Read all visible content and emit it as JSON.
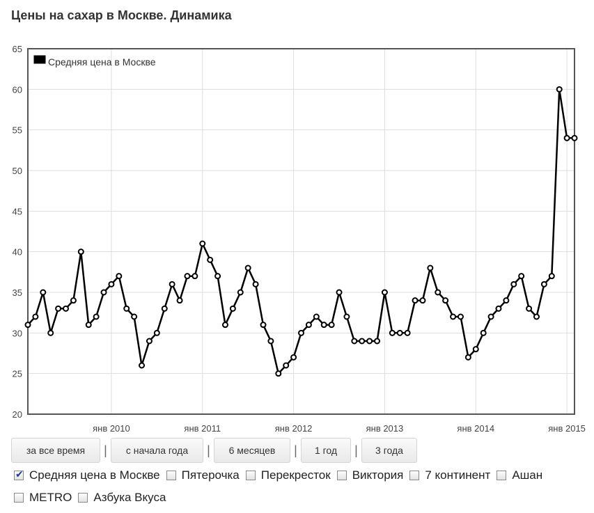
{
  "title": "Цены на сахар в Москве. Динамика",
  "chart_data": {
    "type": "line",
    "title": "Цены на сахар в Москве. Динамика",
    "xlabel": "",
    "ylabel": "",
    "ylim": [
      20,
      65
    ],
    "y_ticks": [
      20,
      25,
      30,
      35,
      40,
      45,
      50,
      55,
      60,
      65
    ],
    "x_tick_labels": [
      "янв 2010",
      "янв 2011",
      "янв 2012",
      "янв 2013",
      "янв 2014",
      "янв 2015"
    ],
    "x_start": "2009-02",
    "grid": true,
    "legend_position": "top-left",
    "colors": {
      "line": "#000000",
      "grid": "#dddddd",
      "frame": "#555555"
    },
    "series": [
      {
        "name": "Средняя цена в Москве",
        "values": [
          31,
          32,
          35,
          30,
          33,
          33,
          34,
          40,
          31,
          32,
          35,
          36,
          37,
          33,
          32,
          26,
          29,
          30,
          33,
          36,
          34,
          37,
          37,
          41,
          39,
          37,
          31,
          33,
          35,
          38,
          36,
          31,
          29,
          25,
          26,
          27,
          30,
          31,
          32,
          31,
          31,
          35,
          32,
          29,
          29,
          29,
          29,
          35,
          30,
          30,
          30,
          34,
          34,
          38,
          35,
          34,
          32,
          32,
          27,
          28,
          30,
          32,
          33,
          34,
          36,
          37,
          33,
          32,
          36,
          37,
          60,
          54,
          54
        ]
      }
    ]
  },
  "range_buttons": [
    "за все время",
    "с начала года",
    "6 месяцев",
    "1 год",
    "3 года"
  ],
  "separator": "|",
  "filters": [
    {
      "label": "Средняя цена в Москве",
      "checked": true
    },
    {
      "label": "Пятерочка",
      "checked": false
    },
    {
      "label": "Перекресток",
      "checked": false
    },
    {
      "label": "Виктория",
      "checked": false
    },
    {
      "label": "7 континент",
      "checked": false
    },
    {
      "label": "Ашан",
      "checked": false
    },
    {
      "label": "METRO",
      "checked": false
    },
    {
      "label": "Азбука Вкуса",
      "checked": false
    }
  ]
}
